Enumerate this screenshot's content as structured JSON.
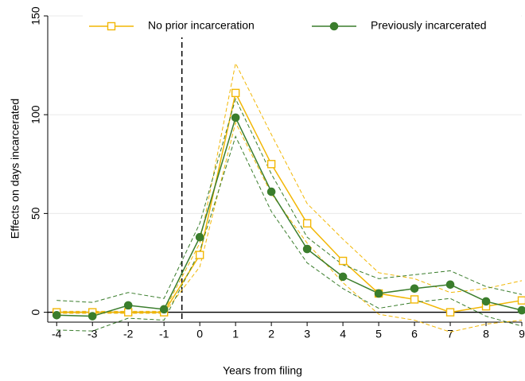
{
  "chart_data": {
    "type": "line",
    "xlabel": "Years from filing",
    "ylabel": "Effects on days incarcerated",
    "x": [
      -4,
      -3,
      -2,
      -1,
      0,
      1,
      2,
      3,
      4,
      5,
      6,
      7,
      8,
      9
    ],
    "series": [
      {
        "name": "No prior incarceration",
        "color": "#f2b705",
        "marker": "square",
        "values": [
          0,
          0,
          0,
          0,
          29,
          111,
          75,
          45,
          26,
          9.5,
          6.5,
          0,
          3,
          6
        ],
        "lower": [
          -0.5,
          -0.5,
          -0.5,
          -0.5,
          23,
          96,
          60,
          35,
          15,
          -1,
          -4,
          -10,
          -6,
          -4
        ],
        "upper": [
          0.5,
          0.5,
          0.5,
          0.5,
          35,
          126,
          90,
          55,
          37,
          20,
          17,
          10,
          12,
          16
        ]
      },
      {
        "name": "Previously incarcerated",
        "color": "#3a7d2c",
        "marker": "circle",
        "values": [
          -1.5,
          -2,
          3.5,
          1.5,
          38,
          98.5,
          61,
          32,
          18,
          9.5,
          12,
          14,
          5.5,
          1
        ],
        "lower": [
          -9,
          -9.5,
          -3,
          -4,
          31,
          89,
          51,
          25,
          12,
          2,
          5,
          7,
          -2,
          -7
        ],
        "upper": [
          6,
          5,
          10,
          7,
          45,
          108,
          70,
          38,
          24,
          17,
          19,
          21,
          13,
          9
        ]
      }
    ],
    "vline": -0.5,
    "xlim": [
      -4.25,
      9
    ],
    "ylim": [
      -5,
      150
    ],
    "xticks": [
      -4,
      -3,
      -2,
      -1,
      0,
      1,
      2,
      3,
      4,
      5,
      6,
      7,
      8,
      9
    ],
    "yticks": [
      0,
      50,
      100,
      150
    ],
    "grid": true
  }
}
